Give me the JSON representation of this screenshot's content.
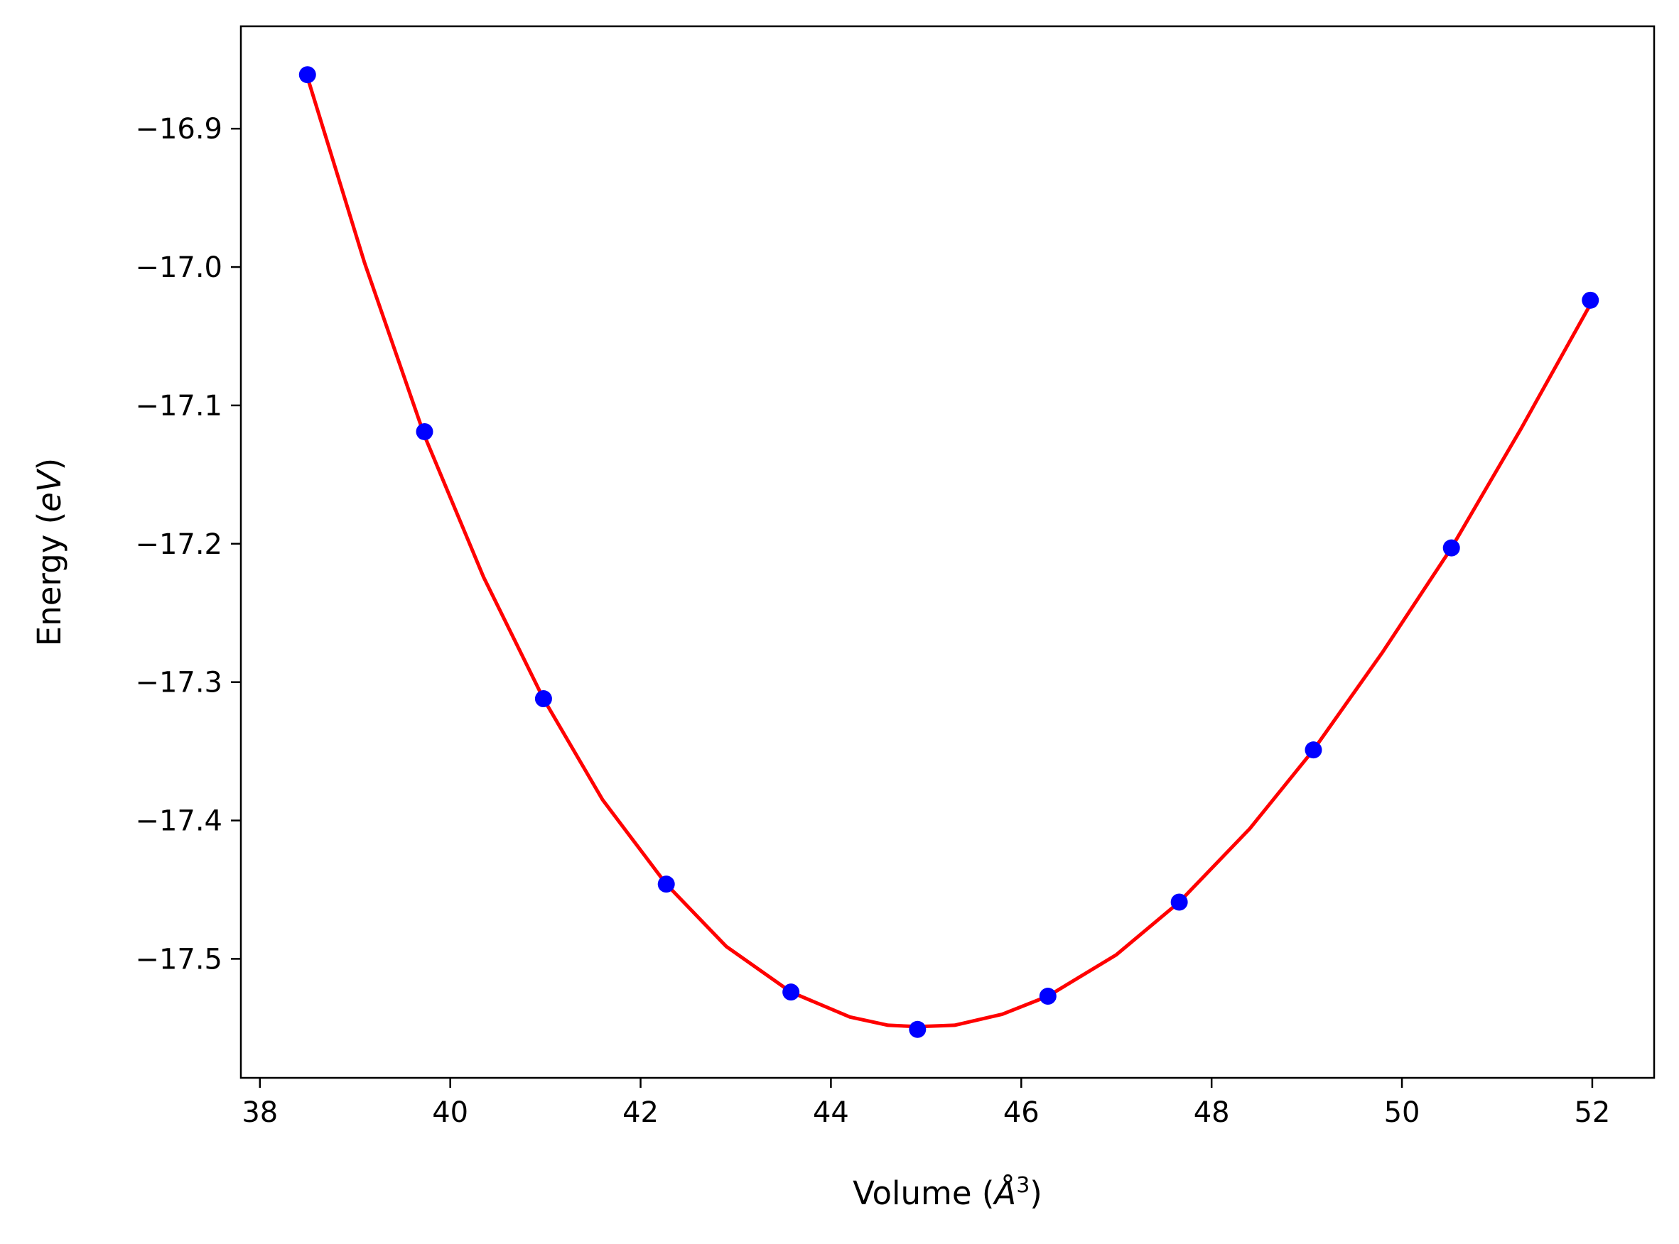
{
  "chart_data": {
    "type": "scatter",
    "title": "",
    "xlabel_prefix": "Volume (",
    "xlabel_unit": "Å",
    "xlabel_exp": "3",
    "xlabel_suffix": ")",
    "ylabel_prefix": "Energy (",
    "ylabel_unit": "eV",
    "ylabel_suffix": ")",
    "xlim": [
      37.8,
      52.65
    ],
    "ylim": [
      -17.586,
      -16.826
    ],
    "x_ticks": [
      38,
      40,
      42,
      44,
      46,
      48,
      50,
      52
    ],
    "x_tick_labels": [
      "38",
      "40",
      "42",
      "44",
      "46",
      "48",
      "50",
      "52"
    ],
    "y_ticks": [
      -16.9,
      -17.0,
      -17.1,
      -17.2,
      -17.3,
      -17.4,
      -17.5
    ],
    "y_tick_labels": [
      "−16.9",
      "−17.0",
      "−17.1",
      "−17.2",
      "−17.3",
      "−17.4",
      "−17.5"
    ],
    "grid": false,
    "series": [
      {
        "kind": "points",
        "color": "#0000ff",
        "x": [
          38.5,
          39.73,
          40.98,
          42.27,
          43.58,
          44.91,
          46.28,
          47.66,
          49.07,
          50.52,
          51.98
        ],
        "y": [
          -16.861,
          -17.119,
          -17.312,
          -17.446,
          -17.524,
          -17.551,
          -17.527,
          -17.459,
          -17.349,
          -17.203,
          -17.024
        ]
      },
      {
        "kind": "fit-line",
        "color": "#ff0000",
        "x": [
          38.5,
          39.1,
          39.73,
          40.35,
          40.98,
          41.6,
          42.27,
          42.9,
          43.58,
          44.2,
          44.6,
          44.91,
          45.3,
          45.8,
          46.28,
          47.0,
          47.66,
          48.4,
          49.07,
          49.8,
          50.52,
          51.25,
          51.98
        ],
        "y": [
          -16.863,
          -16.997,
          -17.122,
          -17.224,
          -17.312,
          -17.385,
          -17.446,
          -17.491,
          -17.524,
          -17.542,
          -17.548,
          -17.549,
          -17.548,
          -17.54,
          -17.527,
          -17.497,
          -17.459,
          -17.406,
          -17.349,
          -17.278,
          -17.203,
          -17.117,
          -17.027
        ]
      }
    ]
  }
}
